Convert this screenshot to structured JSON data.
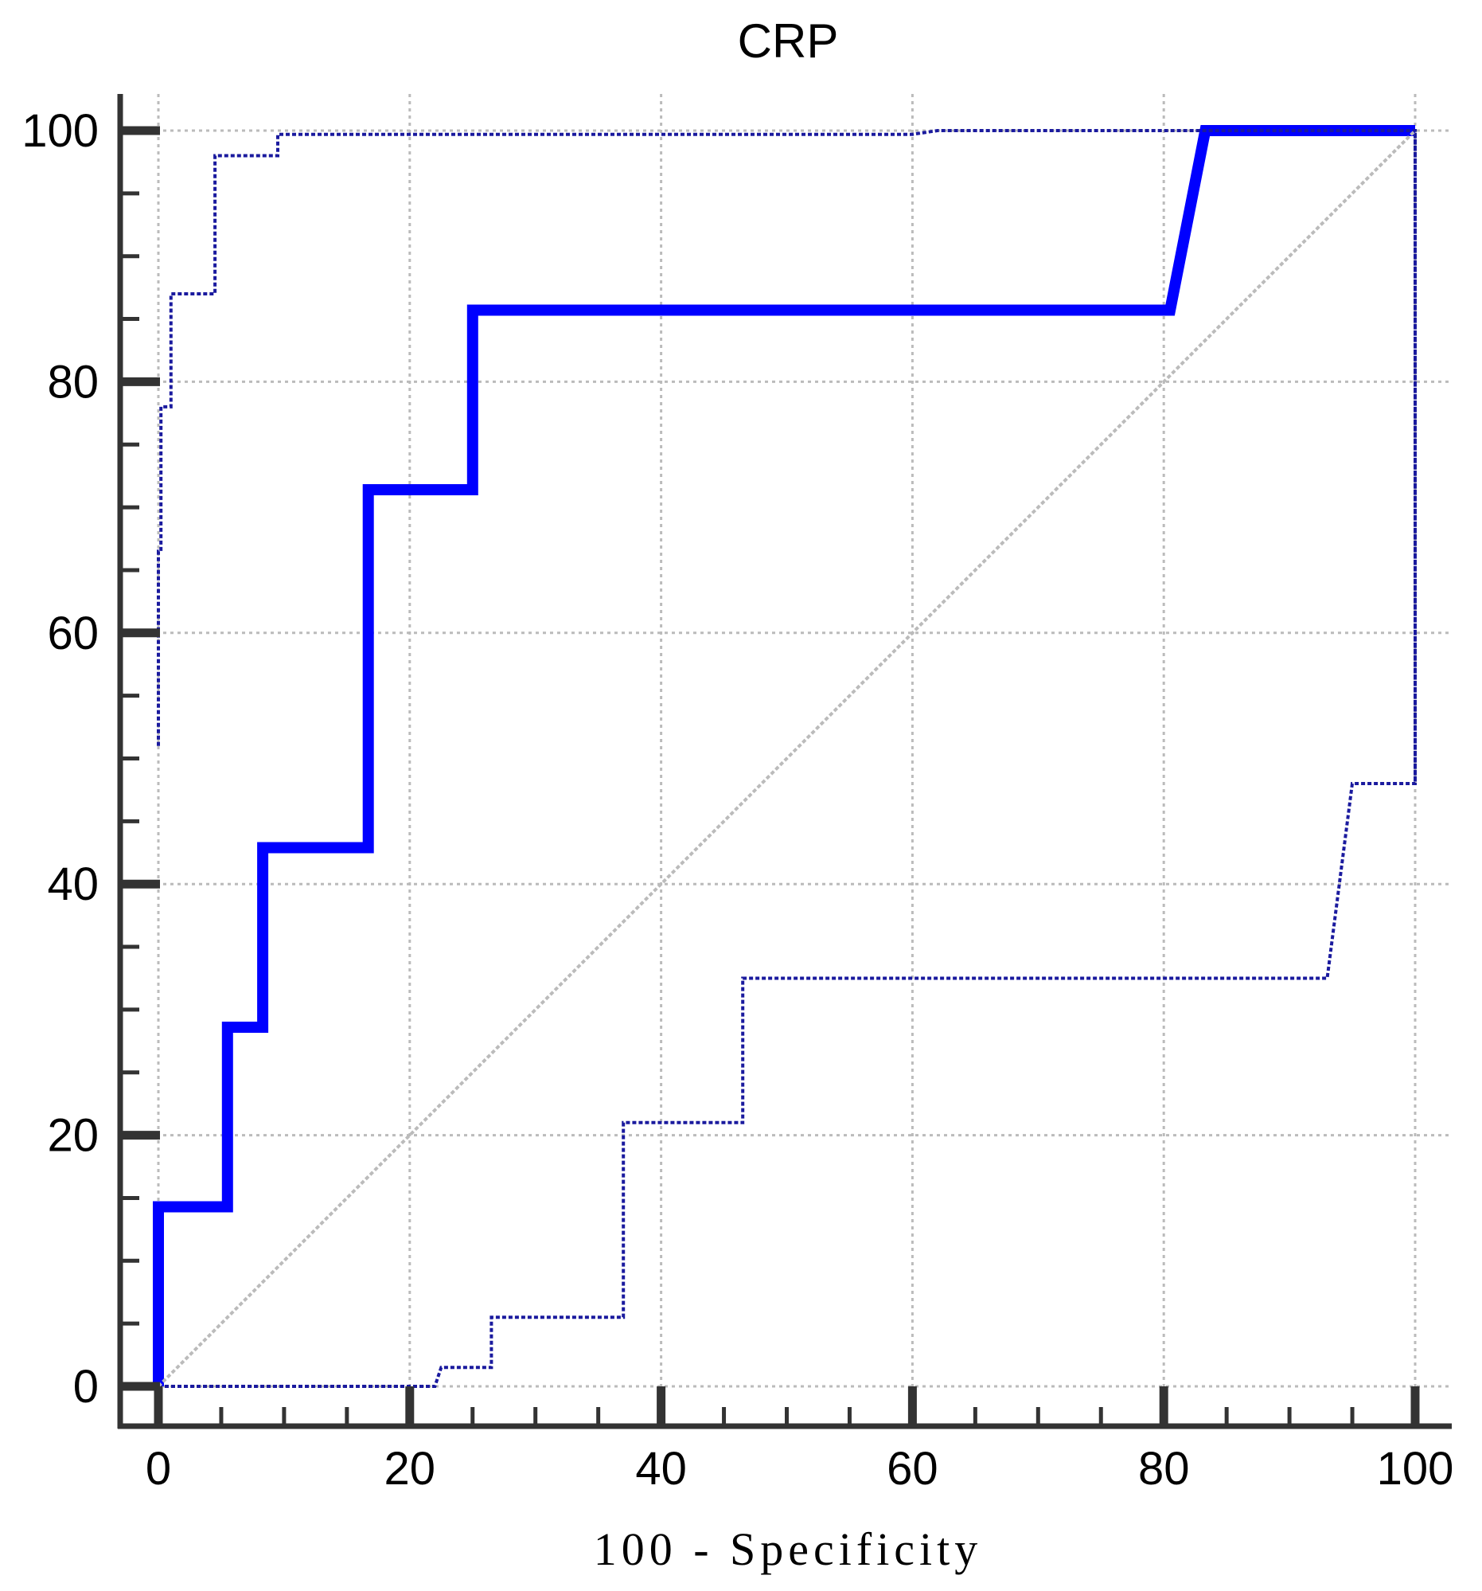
{
  "chart_data": {
    "type": "line",
    "title": "CRP",
    "xlabel": "100 - Specificity",
    "ylabel": "",
    "xlim": [
      0,
      100
    ],
    "ylim": [
      0,
      100
    ],
    "xticks": [
      0,
      20,
      40,
      60,
      80,
      100
    ],
    "yticks": [
      0,
      20,
      40,
      60,
      80,
      100
    ],
    "grid": true,
    "colors": {
      "roc": "#0000ff",
      "ci": "#1a1a9e",
      "reference": "#bbbbbb",
      "grid": "#bbbbbb",
      "axis": "#333333"
    },
    "series": [
      {
        "style": "solid",
        "x": [
          0,
          0,
          5.5,
          5.5,
          8.3,
          8.3,
          16.7,
          16.7,
          25,
          25,
          80.5,
          83.3,
          100
        ],
        "y": [
          0,
          14.3,
          14.3,
          28.6,
          28.6,
          42.9,
          42.9,
          71.4,
          71.4,
          85.7,
          85.7,
          100,
          100
        ]
      },
      {
        "style": "dotted",
        "x": [
          0,
          0,
          0.2,
          0.2,
          1,
          1,
          4.5,
          4.5,
          9.5,
          9.5,
          60,
          62,
          100,
          100
        ],
        "y": [
          51,
          66.5,
          66.5,
          78,
          78,
          87,
          87,
          98,
          98,
          99.7,
          99.7,
          100,
          100,
          48
        ]
      },
      {
        "style": "dotted",
        "x": [
          0,
          22,
          22.5,
          26.5,
          26.5,
          37,
          37,
          46.5,
          46.5,
          93,
          95,
          100,
          100
        ],
        "y": [
          0,
          0,
          1.5,
          1.5,
          5.5,
          5.5,
          21,
          21,
          32.5,
          32.5,
          48,
          48,
          100
        ]
      },
      {
        "style": "reference",
        "x": [
          0,
          100
        ],
        "y": [
          0,
          100
        ]
      }
    ]
  }
}
